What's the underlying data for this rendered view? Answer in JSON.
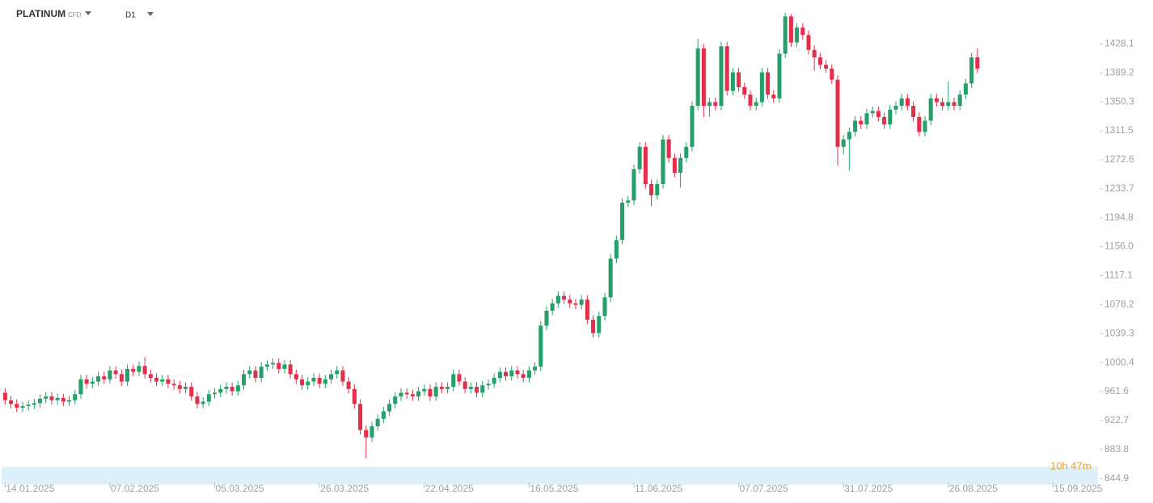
{
  "chart_data": {
    "type": "candlestick",
    "title": "PLATINUM",
    "instrument_type": "CFD",
    "timeframe": "D1",
    "countdown": "10h 47m",
    "up_color": "#26a06a",
    "down_color": "#e3304a",
    "xlim": [
      -0.6,
      188
    ],
    "xticks": [
      {
        "value": 0,
        "label": "14.01.2025"
      },
      {
        "value": 18,
        "label": "07.02.2025"
      },
      {
        "value": 36,
        "label": "05.03.2025"
      },
      {
        "value": 54,
        "label": "26.03.2025"
      },
      {
        "value": 72,
        "label": "22.04.2025"
      },
      {
        "value": 90,
        "label": "16.05.2025"
      },
      {
        "value": 108,
        "label": "11.06.2025"
      },
      {
        "value": 126,
        "label": "07.07.2025"
      },
      {
        "value": 144,
        "label": "31.07.2025"
      },
      {
        "value": 162,
        "label": "26.08.2025"
      },
      {
        "value": 180,
        "label": "15.09.2025"
      }
    ],
    "ylim": [
      837,
      1487
    ],
    "yticks": [
      844.9,
      883.8,
      922.7,
      961.6,
      1000.4,
      1039.3,
      1078.2,
      1117.1,
      {
        "value": 1156,
        "label": "1156.0"
      },
      1194.8,
      1233.7,
      1272.6,
      1311.5,
      1350.3,
      1389.2,
      1428.1
    ],
    "open": [
      960,
      950,
      945,
      940,
      942,
      944,
      946,
      952,
      955,
      950,
      953,
      948,
      950,
      958,
      978,
      972,
      975,
      982,
      978,
      990,
      985,
      975,
      992,
      988,
      996,
      985,
      980,
      975,
      978,
      972,
      970,
      965,
      968,
      955,
      945,
      948,
      958,
      960,
      965,
      968,
      962,
      970,
      985,
      990,
      980,
      995,
      998,
      1000,
      992,
      998,
      985,
      978,
      970,
      975,
      980,
      972,
      978,
      985,
      990,
      975,
      965,
      945,
      910,
      900,
      915,
      925,
      935,
      945,
      955,
      960,
      958,
      955,
      962,
      965,
      955,
      968,
      965,
      968,
      985,
      975,
      965,
      968,
      960,
      970,
      972,
      980,
      988,
      982,
      990,
      985,
      980,
      990,
      995,
      1050,
      1070,
      1080,
      1090,
      1085,
      1080,
      1078,
      1085,
      1058,
      1040,
      1063,
      1088,
      1140,
      1165,
      1215,
      1218,
      1260,
      1290,
      1240,
      1225,
      1240,
      1300,
      1275,
      1255,
      1275,
      1290,
      1345,
      1422,
      1345,
      1350,
      1345,
      1425,
      1365,
      1390,
      1370,
      1360,
      1345,
      1350,
      1390,
      1360,
      1355,
      1415,
      1465,
      1430,
      1450,
      1440,
      1420,
      1410,
      1400,
      1395,
      1380,
      1290,
      1300,
      1310,
      1325,
      1320,
      1335,
      1338,
      1330,
      1320,
      1340,
      1345,
      1355,
      1345,
      1330,
      1310,
      1325,
      1355,
      1350,
      1345,
      1350,
      1345,
      1360,
      1375,
      1410
    ],
    "high": [
      966,
      956,
      951,
      948,
      950,
      952,
      958,
      961,
      961,
      959,
      959,
      956,
      964,
      984,
      984,
      981,
      988,
      988,
      996,
      996,
      991,
      998,
      998,
      1002,
      1008,
      991,
      986,
      984,
      984,
      978,
      976,
      974,
      974,
      961,
      954,
      964,
      966,
      971,
      974,
      974,
      976,
      991,
      996,
      996,
      1001,
      1004,
      1006,
      1006,
      1004,
      1004,
      991,
      984,
      981,
      986,
      986,
      984,
      991,
      996,
      996,
      981,
      971,
      951,
      916,
      921,
      931,
      941,
      951,
      961,
      966,
      966,
      964,
      968,
      971,
      971,
      974,
      974,
      974,
      991,
      991,
      981,
      974,
      974,
      976,
      978,
      986,
      994,
      994,
      996,
      996,
      991,
      996,
      1001,
      1056,
      1076,
      1086,
      1096,
      1096,
      1091,
      1086,
      1091,
      1091,
      1064,
      1069,
      1094,
      1146,
      1171,
      1221,
      1224,
      1266,
      1296,
      1296,
      1246,
      1246,
      1306,
      1306,
      1281,
      1281,
      1296,
      1351,
      1435,
      1428,
      1356,
      1356,
      1431,
      1431,
      1396,
      1396,
      1376,
      1366,
      1356,
      1396,
      1396,
      1366,
      1421,
      1470,
      1468,
      1456,
      1456,
      1446,
      1426,
      1416,
      1406,
      1401,
      1386,
      1306,
      1316,
      1331,
      1331,
      1341,
      1344,
      1344,
      1336,
      1346,
      1351,
      1361,
      1361,
      1351,
      1336,
      1331,
      1361,
      1361,
      1356,
      1378,
      1356,
      1366,
      1381,
      1416,
      1422
    ],
    "low": [
      944,
      939,
      934,
      934,
      936,
      938,
      940,
      946,
      944,
      944,
      942,
      942,
      944,
      952,
      966,
      966,
      969,
      972,
      972,
      979,
      969,
      969,
      982,
      982,
      979,
      974,
      969,
      969,
      966,
      964,
      959,
      959,
      949,
      939,
      939,
      942,
      952,
      954,
      959,
      956,
      956,
      964,
      979,
      974,
      974,
      989,
      992,
      986,
      986,
      979,
      972,
      964,
      964,
      969,
      966,
      966,
      972,
      979,
      969,
      959,
      939,
      904,
      872,
      894,
      909,
      919,
      929,
      939,
      949,
      952,
      949,
      949,
      956,
      949,
      949,
      959,
      959,
      962,
      969,
      959,
      959,
      954,
      954,
      964,
      966,
      974,
      976,
      976,
      979,
      974,
      974,
      984,
      989,
      1044,
      1064,
      1074,
      1079,
      1074,
      1072,
      1072,
      1052,
      1034,
      1034,
      1057,
      1082,
      1134,
      1159,
      1209,
      1212,
      1254,
      1234,
      1210,
      1219,
      1234,
      1269,
      1249,
      1235,
      1269,
      1284,
      1339,
      1330,
      1330,
      1339,
      1339,
      1359,
      1359,
      1364,
      1354,
      1339,
      1339,
      1344,
      1354,
      1349,
      1349,
      1409,
      1424,
      1424,
      1434,
      1414,
      1392,
      1394,
      1389,
      1374,
      1265,
      1280,
      1258,
      1304,
      1314,
      1314,
      1329,
      1324,
      1314,
      1314,
      1334,
      1339,
      1339,
      1324,
      1304,
      1304,
      1319,
      1344,
      1339,
      1339,
      1339,
      1339,
      1354,
      1369,
      1389
    ],
    "close": [
      950,
      945,
      940,
      942,
      944,
      946,
      952,
      955,
      950,
      953,
      948,
      950,
      958,
      978,
      972,
      975,
      982,
      978,
      990,
      985,
      975,
      992,
      988,
      996,
      985,
      980,
      975,
      978,
      972,
      970,
      965,
      968,
      955,
      945,
      948,
      958,
      960,
      965,
      968,
      962,
      970,
      985,
      990,
      980,
      995,
      998,
      1000,
      992,
      998,
      985,
      978,
      970,
      975,
      980,
      972,
      978,
      985,
      990,
      975,
      965,
      945,
      910,
      900,
      915,
      925,
      935,
      945,
      955,
      960,
      958,
      955,
      962,
      965,
      955,
      968,
      965,
      968,
      985,
      975,
      965,
      968,
      960,
      970,
      972,
      980,
      988,
      982,
      990,
      985,
      980,
      990,
      995,
      1050,
      1070,
      1080,
      1090,
      1085,
      1080,
      1078,
      1085,
      1058,
      1040,
      1063,
      1088,
      1140,
      1165,
      1215,
      1218,
      1260,
      1290,
      1240,
      1225,
      1240,
      1300,
      1275,
      1255,
      1275,
      1290,
      1345,
      1422,
      1345,
      1350,
      1345,
      1425,
      1365,
      1390,
      1370,
      1360,
      1345,
      1350,
      1390,
      1360,
      1355,
      1415,
      1465,
      1430,
      1450,
      1440,
      1420,
      1410,
      1400,
      1395,
      1380,
      1290,
      1300,
      1310,
      1325,
      1320,
      1335,
      1338,
      1330,
      1320,
      1340,
      1345,
      1355,
      1345,
      1330,
      1310,
      1325,
      1355,
      1350,
      1345,
      1350,
      1345,
      1360,
      1375,
      1410,
      1395
    ]
  }
}
